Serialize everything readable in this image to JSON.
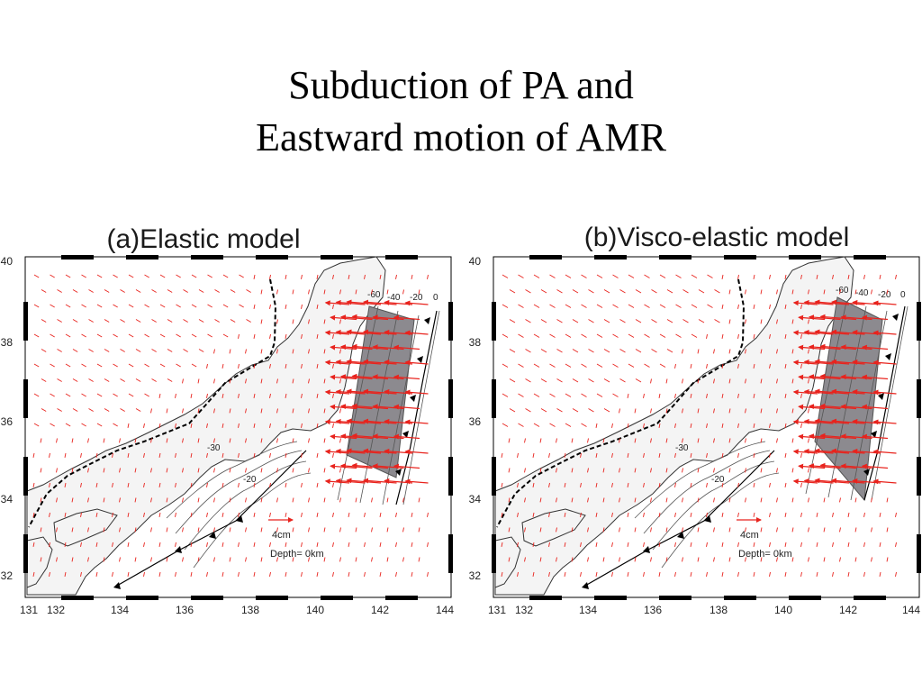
{
  "slide": {
    "title_line1": "Subduction of PA and",
    "title_line2": "Eastward motion of AMR"
  },
  "panels": [
    {
      "id": "a",
      "title": "(a)Elastic model",
      "x_ticks": [
        "131",
        "132",
        "134",
        "136",
        "138",
        "140",
        "142",
        "144"
      ],
      "y_ticks": [
        "40",
        "38",
        "36",
        "34",
        "32"
      ],
      "contour_labels": [
        "-60",
        "-40",
        "-20",
        "0",
        "-20",
        "-30"
      ],
      "scale_label": "4cm",
      "depth_label": "Depth=  0km"
    },
    {
      "id": "b",
      "title": "(b)Visco-elastic model",
      "x_ticks": [
        "131",
        "132",
        "134",
        "136",
        "138",
        "140",
        "142",
        "144"
      ],
      "y_ticks": [
        "40",
        "38",
        "36",
        "34",
        "32"
      ],
      "contour_labels": [
        "-60",
        "-40",
        "-20",
        "0",
        "-20",
        "-30"
      ],
      "scale_label": "4cm",
      "depth_label": "Depth=  0km"
    }
  ],
  "colors": {
    "vector": "#e8231d",
    "land": "#f4f4f4",
    "fault_plane": "#8c8a8f",
    "frame": "#000000",
    "contour": "#555555"
  }
}
